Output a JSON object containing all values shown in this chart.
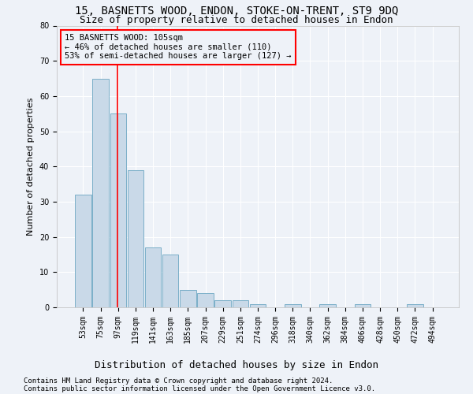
{
  "title1": "15, BASNETTS WOOD, ENDON, STOKE-ON-TRENT, ST9 9DQ",
  "title2": "Size of property relative to detached houses in Endon",
  "xlabel": "Distribution of detached houses by size in Endon",
  "ylabel": "Number of detached properties",
  "categories": [
    "53sqm",
    "75sqm",
    "97sqm",
    "119sqm",
    "141sqm",
    "163sqm",
    "185sqm",
    "207sqm",
    "229sqm",
    "251sqm",
    "274sqm",
    "296sqm",
    "318sqm",
    "340sqm",
    "362sqm",
    "384sqm",
    "406sqm",
    "428sqm",
    "450sqm",
    "472sqm",
    "494sqm"
  ],
  "values": [
    32,
    65,
    55,
    39,
    17,
    15,
    5,
    4,
    2,
    2,
    1,
    0,
    1,
    0,
    1,
    0,
    1,
    0,
    0,
    1,
    0
  ],
  "bar_color": "#c9d9e8",
  "bar_edge_color": "#7aafc8",
  "ylim": [
    0,
    80
  ],
  "yticks": [
    0,
    10,
    20,
    30,
    40,
    50,
    60,
    70,
    80
  ],
  "red_line_x": 1.95,
  "annotation_box_text": "15 BASNETTS WOOD: 105sqm\n← 46% of detached houses are smaller (110)\n53% of semi-detached houses are larger (127) →",
  "footer_line1": "Contains HM Land Registry data © Crown copyright and database right 2024.",
  "footer_line2": "Contains public sector information licensed under the Open Government Licence v3.0.",
  "background_color": "#eef2f8",
  "grid_color": "#ffffff",
  "title1_fontsize": 10,
  "title2_fontsize": 9,
  "xlabel_fontsize": 9,
  "ylabel_fontsize": 8,
  "tick_fontsize": 7,
  "annotation_fontsize": 7.5,
  "footer_fontsize": 6.5
}
